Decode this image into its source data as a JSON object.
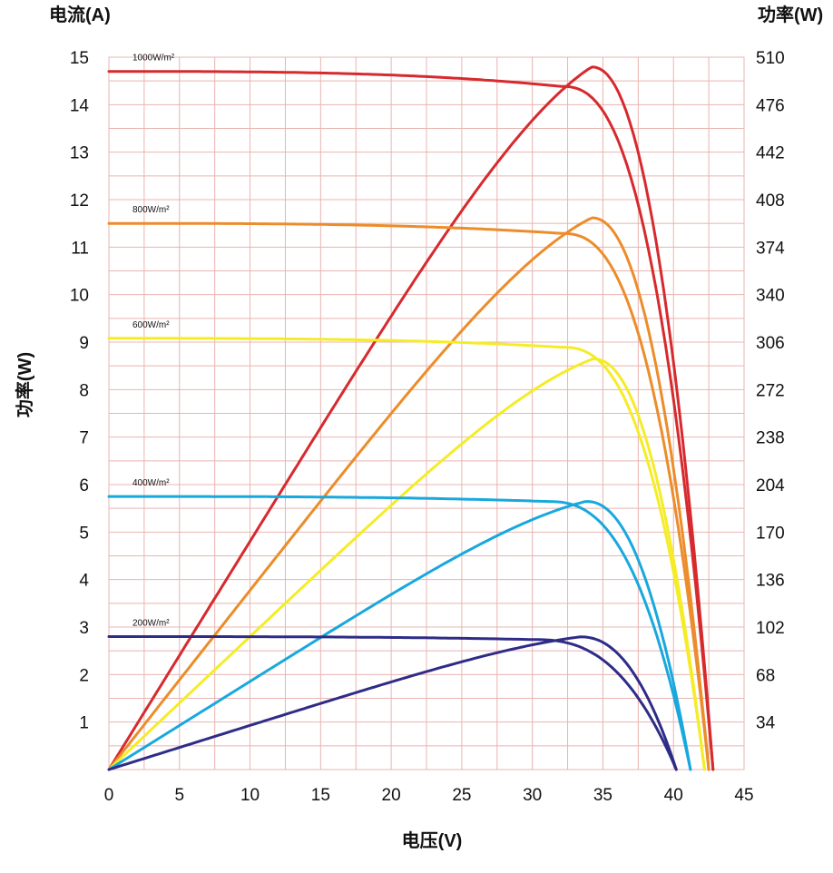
{
  "chart_data": {
    "type": "line",
    "left_axis_title": "电流(A)",
    "right_axis_title": "功率(W)",
    "rotated_axis_title": "功率(W)",
    "xlabel": "电压(V)",
    "xlim": [
      0,
      45
    ],
    "ylim_left": [
      0,
      15
    ],
    "ylim_right": [
      0,
      510
    ],
    "x_ticks": [
      "0",
      "5",
      "10",
      "15",
      "20",
      "25",
      "30",
      "35",
      "40",
      "45"
    ],
    "left_ticks": [
      "1",
      "2",
      "3",
      "4",
      "5",
      "6",
      "7",
      "8",
      "9",
      "10",
      "11",
      "12",
      "13",
      "14",
      "15"
    ],
    "right_ticks": [
      "34",
      "68",
      "102",
      "136",
      "170",
      "204",
      "238",
      "272",
      "306",
      "340",
      "374",
      "408",
      "442",
      "476",
      "510"
    ],
    "grid": true,
    "series": [
      {
        "name": "1000W/m²",
        "color": "#d62a2e",
        "iv": {
          "isc": 14.7,
          "vmp": 34,
          "imp": 13.8,
          "voc": 42.8,
          "knee": 32
        },
        "pv_peak": {
          "vmp": 34.2,
          "pmax": 503,
          "voc": 42.8
        }
      },
      {
        "name": "800W/m²",
        "color": "#ec8c2a",
        "iv": {
          "isc": 11.5,
          "vmp": 34,
          "imp": 10.9,
          "voc": 42.5,
          "knee": 32
        },
        "pv_peak": {
          "vmp": 34.2,
          "pmax": 395,
          "voc": 42.5
        }
      },
      {
        "name": "600W/m²",
        "color": "#f5ec27",
        "iv": {
          "isc": 9.08,
          "vmp": 34,
          "imp": 8.55,
          "voc": 42.2,
          "knee": 32
        },
        "pv_peak": {
          "vmp": 34.3,
          "pmax": 294,
          "voc": 42.2
        }
      },
      {
        "name": "400W/m²",
        "color": "#18a8de",
        "iv": {
          "isc": 5.75,
          "vmp": 33.5,
          "imp": 5.45,
          "voc": 41.2,
          "knee": 31
        },
        "pv_peak": {
          "vmp": 33.8,
          "pmax": 192,
          "voc": 41.2
        }
      },
      {
        "name": "200W/m²",
        "color": "#2e2c86",
        "iv": {
          "isc": 2.8,
          "vmp": 33,
          "imp": 2.62,
          "voc": 40.2,
          "knee": 30
        },
        "pv_peak": {
          "vmp": 33.4,
          "pmax": 95,
          "voc": 40.2
        }
      }
    ]
  }
}
